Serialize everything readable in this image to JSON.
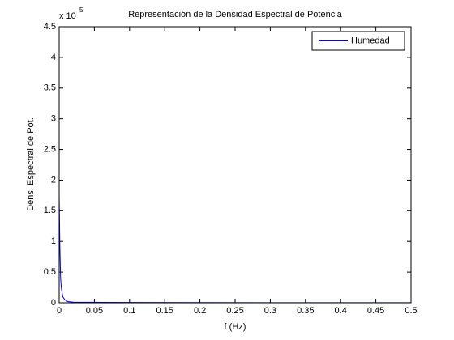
{
  "chart_data": {
    "type": "line",
    "title": "Representación de la Densidad Espectral de Potencia",
    "x_label": "f (Hz)",
    "y_label": "Dens. Espectral de Pot.",
    "y_multiplier": {
      "base": "x 10",
      "exponent": "5"
    },
    "x": [
      0,
      0.001,
      0.002,
      0.003,
      0.005,
      0.008,
      0.012,
      0.02,
      0.1,
      0.2,
      0.3,
      0.4,
      0.5
    ],
    "series": [
      {
        "name": "Humedad",
        "color": "#0000ff",
        "values": [
          1.75,
          0.9,
          0.4,
          0.25,
          0.1,
          0.05,
          0.02,
          0.01,
          0.005,
          0.003,
          0.002,
          0.001,
          0.001
        ]
      }
    ],
    "xlim": [
      0,
      0.5
    ],
    "xticks": [
      0,
      0.05,
      0.1,
      0.15,
      0.2,
      0.25,
      0.3,
      0.35,
      0.4,
      0.45,
      0.5
    ],
    "ylim": [
      0,
      4.5
    ],
    "yticks": [
      0,
      0.5,
      1,
      1.5,
      2,
      2.5,
      3,
      3.5,
      4,
      4.5
    ],
    "grid": false,
    "legend_position": "northeast"
  }
}
